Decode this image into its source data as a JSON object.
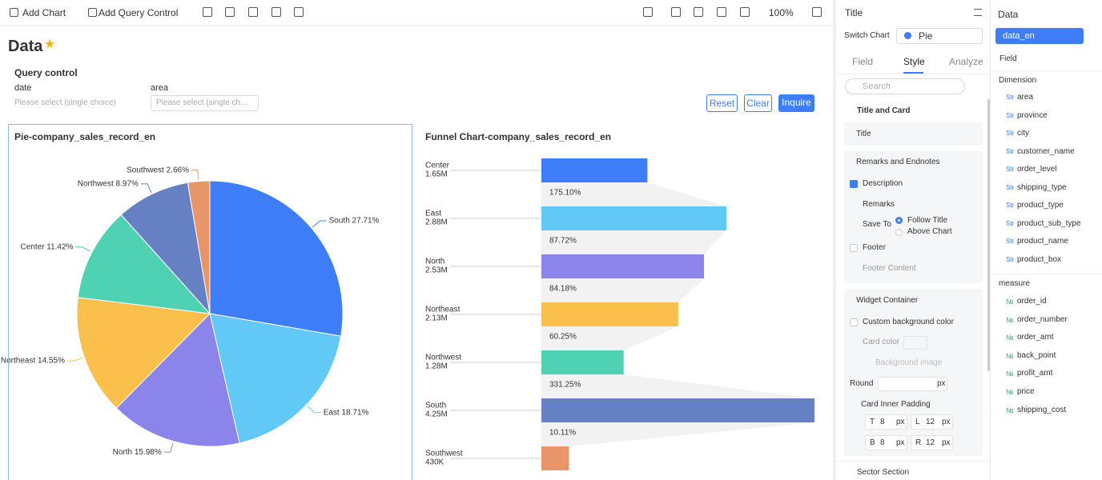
{
  "toolbar": {
    "add_chart": "Add Chart",
    "add_query_control": "Add Query Control",
    "zoom": "100%"
  },
  "page": {
    "title": "Data"
  },
  "query_control": {
    "title": "Query control",
    "fields": [
      {
        "label": "date",
        "placeholder": "Please select (single choice)"
      },
      {
        "label": "area",
        "placeholder": "Please select (single ch..."
      }
    ],
    "buttons": [
      "Reset",
      "Clear",
      "Inquire"
    ]
  },
  "pie_chart": {
    "type": "pie",
    "title": "Pie-company_sales_record_en",
    "labels": [
      "South 27.71%",
      "East 18.71%",
      "North 15.98%",
      "Northeast 14.55%",
      "Center 11.42%",
      "Northwest 8.97%",
      "Southwest 2.66%"
    ],
    "values": [
      27.71,
      18.71,
      15.98,
      14.55,
      11.42,
      8.97,
      2.66
    ],
    "colors": [
      "#3d7ef8",
      "#62c8f5",
      "#8b84eb",
      "#fbc04b",
      "#4fd1b4",
      "#6680c4",
      "#e9956a"
    ]
  },
  "funnel_chart": {
    "type": "funnel",
    "title": "Funnel Chart-company_sales_record_en",
    "categories": [
      "Center",
      "East",
      "North",
      "Northeast",
      "Northwest",
      "South",
      "Southwest"
    ],
    "values": [
      1650000,
      2880000,
      2530000,
      2130000,
      1280000,
      4250000,
      430000
    ],
    "value_labels": [
      "1.65M",
      "2.88M",
      "2.53M",
      "2.13M",
      "1.28M",
      "4.25M",
      "430K"
    ],
    "rate_labels": [
      "175.10%",
      "87.72%",
      "84.18%",
      "60.25%",
      "331.25%",
      "10.11%"
    ],
    "colors": [
      "#3d7ef8",
      "#62c8f5",
      "#8b84eb",
      "#fbc04b",
      "#4fd1b4",
      "#6680c4",
      "#e9956a"
    ]
  },
  "style_panel": {
    "title": "Title",
    "switch_chart_label": "Switch Chart",
    "chart_type": "Pie",
    "tabs": [
      "Field",
      "Style",
      "Analyze"
    ],
    "search_placeholder": "Search",
    "title_and_card": "Title and Card",
    "remarks_and_endnotes": "Remarks and Endnotes",
    "description": "Description",
    "remarks": "Remarks",
    "save_to": "Save To",
    "save_options": [
      "Follow Title",
      "Above Chart"
    ],
    "footer": "Footer",
    "footer_content": "Footer Content",
    "widget_container": "Widget Container",
    "custom_bg": "Custom background color",
    "card_color": "Card color",
    "bg_image": "Background image",
    "round": "Round",
    "px": "px",
    "card_inner_padding": "Card Inner Padding",
    "padding": [
      {
        "label": "T",
        "value": 8
      },
      {
        "label": "L",
        "value": 12
      },
      {
        "label": "B",
        "value": 8
      },
      {
        "label": "R",
        "value": 12
      }
    ],
    "sector_section": "Sector Section"
  },
  "data_panel": {
    "title": "Data",
    "dataset": "data_en",
    "field_label": "Field",
    "dimension_title": "Dimension",
    "str_tag": "Str",
    "num_tag": "№",
    "dimensions": [
      "area",
      "province",
      "city",
      "customer_name",
      "order_level",
      "shipping_type",
      "product_type",
      "product_sub_type",
      "product_name",
      "product_box"
    ],
    "measure_title": "measure",
    "measures": [
      "order_id",
      "order_number",
      "order_amt",
      "back_point",
      "profit_amt",
      "price",
      "shipping_cost"
    ]
  }
}
